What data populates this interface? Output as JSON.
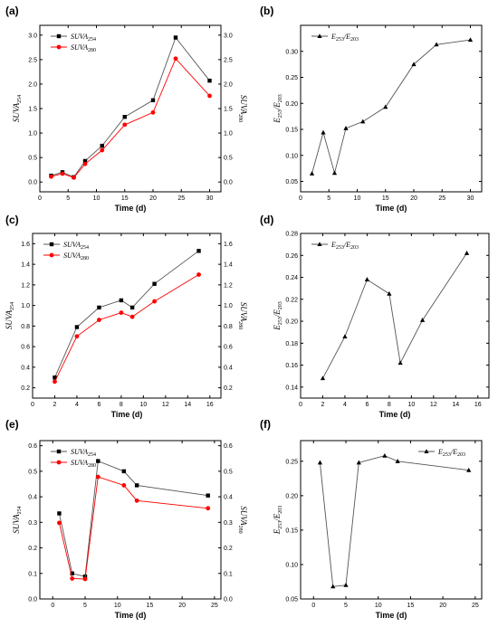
{
  "chart_data": [
    {
      "panel": "(a)",
      "type": "line",
      "xlabel": "Time (d)",
      "ylabel_left": {
        "base": "SUVA",
        "sub": "254"
      },
      "ylabel_right": {
        "base": "SUVA",
        "sub": "280"
      },
      "xlim": [
        0,
        32
      ],
      "xticks": [
        0,
        5,
        10,
        15,
        20,
        25,
        30
      ],
      "ylim": [
        -0.2,
        3.2
      ],
      "yticks": [
        0.0,
        0.5,
        1.0,
        1.5,
        2.0,
        2.5,
        3.0
      ],
      "ytick_labels": [
        "0.0",
        "0.5",
        "1.0",
        "1.5",
        "2.0",
        "2.5",
        "3.0"
      ],
      "right_axis": true,
      "legend": "top-left",
      "series": [
        {
          "legend_base": "SUVA",
          "legend_sub": "254",
          "marker": "square",
          "color": "#000000",
          "x": [
            2,
            4,
            6,
            8,
            11,
            15,
            20,
            24,
            30
          ],
          "y": [
            0.13,
            0.2,
            0.1,
            0.43,
            0.74,
            1.33,
            1.67,
            2.95,
            2.07
          ]
        },
        {
          "legend_base": "SUVA",
          "legend_sub": "280",
          "marker": "circle",
          "color": "#ff0000",
          "x": [
            2,
            4,
            6,
            8,
            11,
            15,
            20,
            24,
            30
          ],
          "y": [
            0.11,
            0.17,
            0.09,
            0.37,
            0.65,
            1.17,
            1.42,
            2.52,
            1.76
          ]
        }
      ]
    },
    {
      "panel": "(b)",
      "type": "line",
      "xlabel": "Time (d)",
      "ylabel_left": {
        "base": "E",
        "sub": "253",
        "base2": "/E",
        "sub2": "203"
      },
      "xlim": [
        0,
        32
      ],
      "xticks": [
        0,
        5,
        10,
        15,
        20,
        25,
        30
      ],
      "ylim": [
        0.03,
        0.35
      ],
      "yticks": [
        0.05,
        0.1,
        0.15,
        0.2,
        0.25,
        0.3
      ],
      "ytick_labels": [
        "0.05",
        "0.10",
        "0.15",
        "0.20",
        "0.25",
        "0.30"
      ],
      "right_axis": false,
      "legend": "top-left",
      "series": [
        {
          "legend_base": "E",
          "legend_sub": "253",
          "legend_base2": "/E",
          "legend_sub2": "203",
          "marker": "triangle",
          "color": "#000000",
          "x": [
            2,
            4,
            6,
            8,
            11,
            15,
            20,
            24,
            30
          ],
          "y": [
            0.065,
            0.144,
            0.066,
            0.152,
            0.165,
            0.193,
            0.275,
            0.313,
            0.322
          ]
        }
      ]
    },
    {
      "panel": "(c)",
      "type": "line",
      "xlabel": "Time (d)",
      "ylabel_left": {
        "base": "SUVA",
        "sub": "254"
      },
      "ylabel_right": {
        "base": "SUVA",
        "sub": "280"
      },
      "xlim": [
        0,
        17
      ],
      "xticks": [
        0,
        2,
        4,
        6,
        8,
        10,
        12,
        14,
        16
      ],
      "ylim": [
        0.1,
        1.7
      ],
      "yticks": [
        0.2,
        0.4,
        0.6,
        0.8,
        1.0,
        1.2,
        1.4,
        1.6
      ],
      "ytick_labels": [
        "0.2",
        "0.4",
        "0.6",
        "0.8",
        "1.0",
        "1.2",
        "1.4",
        "1.6"
      ],
      "right_axis": true,
      "legend": "top-left",
      "series": [
        {
          "legend_base": "SUVA",
          "legend_sub": "254",
          "marker": "square",
          "color": "#000000",
          "x": [
            2,
            4,
            6,
            8,
            9,
            11,
            15
          ],
          "y": [
            0.3,
            0.79,
            0.98,
            1.05,
            0.98,
            1.21,
            1.53
          ]
        },
        {
          "legend_base": "SUVA",
          "legend_sub": "280",
          "marker": "circle",
          "color": "#ff0000",
          "x": [
            2,
            4,
            6,
            8,
            9,
            11,
            15
          ],
          "y": [
            0.26,
            0.7,
            0.86,
            0.93,
            0.89,
            1.04,
            1.3
          ]
        }
      ]
    },
    {
      "panel": "(d)",
      "type": "line",
      "xlabel": "Time (d)",
      "ylabel_left": {
        "base": "E",
        "sub": "253",
        "base2": "/E",
        "sub2": "203"
      },
      "xlim": [
        0,
        17
      ],
      "xticks": [
        0,
        2,
        4,
        6,
        8,
        10,
        12,
        14,
        16
      ],
      "ylim": [
        0.13,
        0.28
      ],
      "yticks": [
        0.14,
        0.16,
        0.18,
        0.2,
        0.22,
        0.24,
        0.26,
        0.28
      ],
      "ytick_labels": [
        "0.14",
        "0.16",
        "0.18",
        "0.20",
        "0.22",
        "0.24",
        "0.26",
        "0.28"
      ],
      "right_axis": false,
      "legend": "top-left",
      "series": [
        {
          "legend_base": "E",
          "legend_sub": "253",
          "legend_base2": "/E",
          "legend_sub2": "203",
          "marker": "triangle",
          "color": "#000000",
          "x": [
            2,
            4,
            6,
            8,
            9,
            11,
            15
          ],
          "y": [
            0.148,
            0.186,
            0.238,
            0.225,
            0.162,
            0.201,
            0.262
          ]
        }
      ]
    },
    {
      "panel": "(e)",
      "type": "line",
      "xlabel": "Time (d)",
      "ylabel_left": {
        "base": "SUVA",
        "sub": "254"
      },
      "ylabel_right": {
        "base": "SUVA",
        "sub": "280"
      },
      "xlim": [
        -2,
        26
      ],
      "xticks": [
        0,
        5,
        10,
        15,
        20,
        25
      ],
      "ylim": [
        0.0,
        0.62
      ],
      "yticks": [
        0.0,
        0.1,
        0.2,
        0.3,
        0.4,
        0.5,
        0.6
      ],
      "ytick_labels": [
        "0.0",
        "0.1",
        "0.2",
        "0.3",
        "0.4",
        "0.5",
        "0.6"
      ],
      "right_axis": true,
      "legend": "top-left",
      "series": [
        {
          "legend_base": "SUVA",
          "legend_sub": "254",
          "marker": "square",
          "color": "#000000",
          "x": [
            1,
            3,
            5,
            7,
            11,
            13,
            24
          ],
          "y": [
            0.335,
            0.1,
            0.088,
            0.54,
            0.5,
            0.445,
            0.405
          ]
        },
        {
          "legend_base": "SUVA",
          "legend_sub": "280",
          "marker": "circle",
          "color": "#ff0000",
          "x": [
            1,
            3,
            5,
            7,
            11,
            13,
            24
          ],
          "y": [
            0.298,
            0.08,
            0.078,
            0.478,
            0.445,
            0.385,
            0.355
          ]
        }
      ]
    },
    {
      "panel": "(f)",
      "type": "line",
      "xlabel": "Time (d)",
      "ylabel_left": {
        "base": "E",
        "sub": "253",
        "base2": "/E",
        "sub2": "203"
      },
      "xlim": [
        -2,
        26
      ],
      "xticks": [
        0,
        5,
        10,
        15,
        20,
        25
      ],
      "ylim": [
        0.05,
        0.28
      ],
      "yticks": [
        0.05,
        0.1,
        0.15,
        0.2,
        0.25
      ],
      "ytick_labels": [
        "0.05",
        "0.10",
        "0.15",
        "0.20",
        "0.25"
      ],
      "right_axis": false,
      "legend": "top-right",
      "series": [
        {
          "legend_base": "E",
          "legend_sub": "253",
          "legend_base2": "/E",
          "legend_sub2": "203",
          "marker": "triangle",
          "color": "#000000",
          "x": [
            1,
            3,
            5,
            7,
            11,
            13,
            24
          ],
          "y": [
            0.248,
            0.068,
            0.07,
            0.248,
            0.258,
            0.25,
            0.237
          ]
        }
      ]
    }
  ]
}
